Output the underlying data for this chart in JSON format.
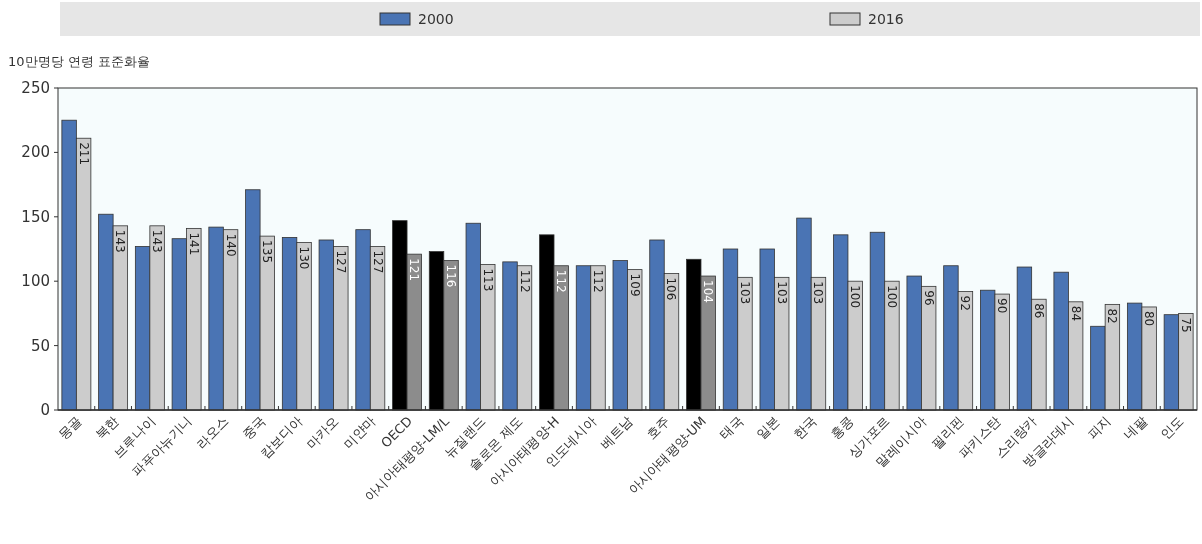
{
  "chart_data": {
    "type": "bar",
    "ylabel": "10만명당 연령 표준화율",
    "categories": [
      "몽골",
      "북한",
      "브루나이",
      "파푸아뉴기니",
      "라오스",
      "중국",
      "캄보디아",
      "마카오",
      "미얀마",
      "OECD",
      "아시아태평양-LM/L",
      "뉴질랜드",
      "솔로몬 제도",
      "아시아태평양-H",
      "인도네시아",
      "베트남",
      "호주",
      "아시아태평양-UM",
      "태국",
      "일본",
      "한국",
      "홍콩",
      "싱가포르",
      "말레이시아",
      "필리핀",
      "파키스탄",
      "스리랑카",
      "방글라데시",
      "피지",
      "네팔",
      "인도"
    ],
    "series": [
      {
        "name": "2000",
        "color": "#4a74b4",
        "colors": [
          "#4a74b4",
          "#4a74b4",
          "#4a74b4",
          "#4a74b4",
          "#4a74b4",
          "#4a74b4",
          "#4a74b4",
          "#4a74b4",
          "#4a74b4",
          "#000000",
          "#000000",
          "#4a74b4",
          "#4a74b4",
          "#000000",
          "#4a74b4",
          "#4a74b4",
          "#4a74b4",
          "#000000",
          "#4a74b4",
          "#4a74b4",
          "#4a74b4",
          "#4a74b4",
          "#4a74b4",
          "#4a74b4",
          "#4a74b4",
          "#4a74b4",
          "#4a74b4",
          "#4a74b4",
          "#4a74b4",
          "#4a74b4",
          "#4a74b4"
        ],
        "values": [
          225,
          152,
          127,
          133,
          142,
          171,
          134,
          132,
          140,
          147,
          123,
          145,
          115,
          136,
          112,
          116,
          132,
          117,
          125,
          125,
          149,
          136,
          138,
          104,
          112,
          93,
          111,
          107,
          65,
          83,
          74
        ]
      },
      {
        "name": "2016",
        "color": "#cccccc",
        "colors": [
          "#cccccc",
          "#cccccc",
          "#cccccc",
          "#cccccc",
          "#cccccc",
          "#cccccc",
          "#cccccc",
          "#cccccc",
          "#cccccc",
          "#8c8c8c",
          "#8c8c8c",
          "#cccccc",
          "#cccccc",
          "#8c8c8c",
          "#cccccc",
          "#cccccc",
          "#cccccc",
          "#8c8c8c",
          "#cccccc",
          "#cccccc",
          "#cccccc",
          "#cccccc",
          "#cccccc",
          "#cccccc",
          "#cccccc",
          "#cccccc",
          "#cccccc",
          "#cccccc",
          "#cccccc",
          "#cccccc",
          "#cccccc"
        ],
        "values": [
          211,
          143,
          143,
          141,
          140,
          135,
          130,
          127,
          127,
          121,
          116,
          113,
          112,
          112,
          112,
          109,
          106,
          104,
          103,
          103,
          103,
          100,
          100,
          96,
          92,
          90,
          86,
          84,
          82,
          80,
          75
        ],
        "value_labels": [
          "211",
          "143",
          "143",
          "141",
          "140",
          "135",
          "130",
          "127",
          "127",
          "121",
          "116",
          "113",
          "112",
          "112",
          "112",
          "109",
          "106",
          "104",
          "103",
          "103",
          "103",
          "100",
          "100",
          "96",
          "92",
          "90",
          "86",
          "84",
          "82",
          "80",
          "75"
        ]
      }
    ],
    "ylim": [
      0,
      250
    ],
    "yticks": [
      0,
      50,
      100,
      150,
      200,
      250
    ],
    "grid": false,
    "legend": "top"
  }
}
